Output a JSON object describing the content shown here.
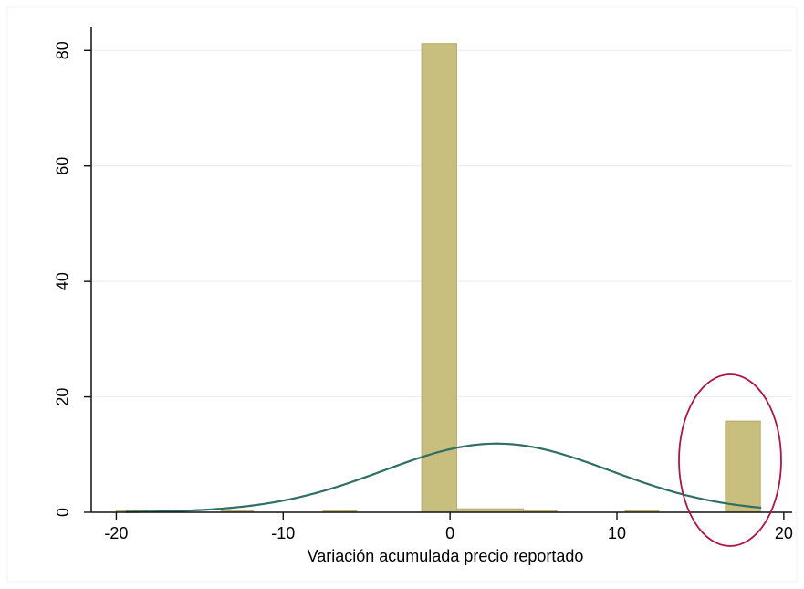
{
  "chart_data": {
    "type": "bar",
    "title": "",
    "xlabel": "Variación acumulada precio reportado",
    "ylabel": "",
    "xlim": [
      -21.5,
      20.5
    ],
    "ylim": [
      0,
      84
    ],
    "grid": true,
    "x_ticks": [
      {
        "value": -20,
        "label": "-20"
      },
      {
        "value": -10,
        "label": "-10"
      },
      {
        "value": 0,
        "label": "0"
      },
      {
        "value": 10,
        "label": "10"
      },
      {
        "value": 20,
        "label": "20"
      }
    ],
    "y_ticks": [
      {
        "value": 0,
        "label": "0"
      },
      {
        "value": 20,
        "label": "20"
      },
      {
        "value": 40,
        "label": "40"
      },
      {
        "value": 60,
        "label": "60"
      },
      {
        "value": 80,
        "label": "80"
      }
    ],
    "histogram": {
      "bins": [
        {
          "x0": -20.0,
          "x1": -18.1,
          "value": 0.3
        },
        {
          "x0": -13.7,
          "x1": -11.8,
          "value": 0.3
        },
        {
          "x0": -7.6,
          "x1": -5.6,
          "value": 0.3
        },
        {
          "x0": -1.7,
          "x1": 0.4,
          "value": 81.2
        },
        {
          "x0": 0.4,
          "x1": 4.4,
          "value": 0.6
        },
        {
          "x0": 4.4,
          "x1": 6.4,
          "value": 0.3
        },
        {
          "x0": 10.5,
          "x1": 12.5,
          "value": 0.3
        },
        {
          "x0": 16.5,
          "x1": 18.6,
          "value": 15.8
        }
      ]
    },
    "density_curve": {
      "type": "normal",
      "mean": 2.8,
      "sd": 6.8,
      "peak": 11.9,
      "x_range": [
        -19.4,
        18.6
      ]
    },
    "annotation": {
      "type": "ellipse",
      "target": "bar at x≈18"
    }
  },
  "colors": {
    "background": "#ffffff",
    "bar_fill": "#c8be7d",
    "bar_stroke": "#b6ab68",
    "curve": "#2f6f65",
    "grid": "#e8f0f2",
    "axis": "#111111",
    "annotation": "#b0134a",
    "frame": "#f1f1f1"
  }
}
